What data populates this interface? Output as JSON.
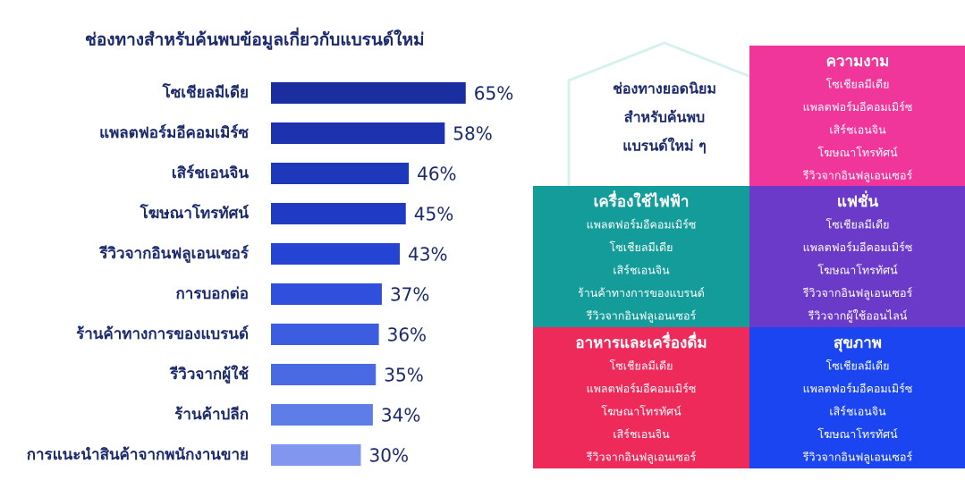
{
  "chart_data": {
    "type": "bar",
    "orientation": "horizontal",
    "title": "ช่องทางสำหรับค้นพบข้อมูลเกี่ยวกับแบรนด์ใหม่",
    "categories": [
      "โซเชียลมีเดีย",
      "แพลตฟอร์มอีคอมเมิร์ซ",
      "เสิร์ชเอนจิน",
      "โฆษณาโทรทัศน์",
      "รีวิวจากอินฟลูเอนเซอร์",
      "การบอกต่อ",
      "ร้านค้าทางการของแบรนด์",
      "รีวิวจากผู้ใช้",
      "ร้านค้าปลีก",
      "การแนะนำสินค้าจากพนักงานขาย"
    ],
    "values": [
      65,
      58,
      46,
      45,
      43,
      37,
      36,
      35,
      34,
      30
    ],
    "value_labels": [
      "65%",
      "58%",
      "46%",
      "45%",
      "43%",
      "37%",
      "36%",
      "35%",
      "34%",
      "30%"
    ],
    "colors": [
      "#1a2ea0",
      "#1c32ae",
      "#1e38bc",
      "#1f3bc4",
      "#2544d4",
      "#2f4fdc",
      "#3d5de0",
      "#4a6ae4",
      "#5e7de8",
      "#8196ee"
    ]
  },
  "center_label": [
    "ช่องทางยอดนิยม",
    "สำหรับค้นพบ",
    "แบรนด์ใหม่ ๆ"
  ],
  "panels": [
    {
      "title": "ความงาม",
      "items": [
        "โซเชียลมีเดีย",
        "แพลตฟอร์มอีคอมเมิร์ซ",
        "เสิร์ชเอนจิน",
        "โฆษณาโทรทัศน์",
        "รีวิวจากอินฟลูเอนเซอร์"
      ]
    },
    {
      "title": "เครื่องใช้ไฟฟ้า",
      "items": [
        "แพลตฟอร์มอีคอมเมิร์ซ",
        "โซเชียลมีเดีย",
        "เสิร์ชเอนจิน",
        "ร้านค้าทางการของแบรนด์",
        "รีวิวจากอินฟลูเอนเซอร์"
      ]
    },
    {
      "title": "แฟชั่น",
      "items": [
        "โซเชียลมีเดีย",
        "แพลตฟอร์มอีคอมเมิร์ซ",
        "โฆษณาโทรทัศน์",
        "รีวิวจากอินฟลูเอนเซอร์",
        "รีวิวจากผู้ใช้ออนไลน์"
      ]
    },
    {
      "title": "อาหารและเครื่องดื่ม",
      "items": [
        "โซเชียลมีเดีย",
        "แพลตฟอร์มอีคอมเมิร์ซ",
        "โฆษณาโทรทัศน์",
        "เสิร์ชเอนจิน",
        "รีวิวจากอินฟลูเอนเซอร์"
      ]
    },
    {
      "title": "สุขภาพ",
      "items": [
        "โซเชียลมีเดีย",
        "แพลตฟอร์มอีคอมเมิร์ซ",
        "เสิร์ชเอนจิน",
        "โฆษณาโทรทัศน์",
        "รีวิวจากอินฟลูเอนเซอร์"
      ]
    }
  ]
}
